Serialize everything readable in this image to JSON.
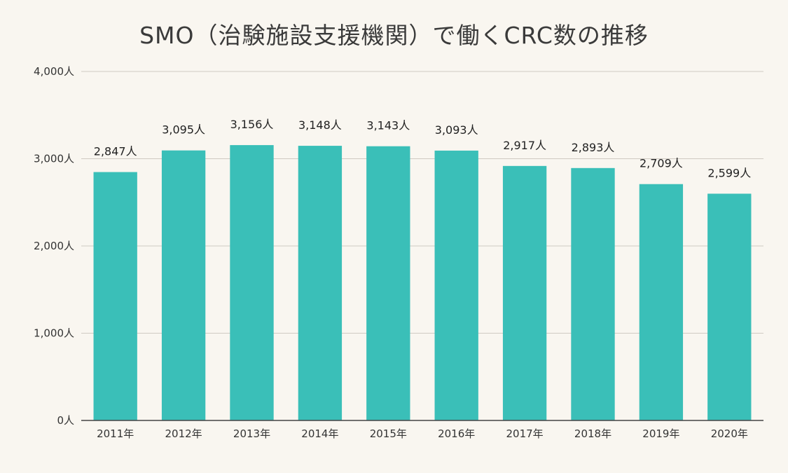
{
  "chart_data": {
    "type": "bar",
    "title": "SMO（治験施設支援機関）で働くCRC数の推移",
    "xlabel": "",
    "ylabel": "",
    "categories": [
      "2011年",
      "2012年",
      "2013年",
      "2014年",
      "2015年",
      "2016年",
      "2017年",
      "2018年",
      "2019年",
      "2020年"
    ],
    "values": [
      2847,
      3095,
      3156,
      3148,
      3143,
      3093,
      2917,
      2893,
      2709,
      2599
    ],
    "data_labels": [
      "2,847人",
      "3,095人",
      "3,156人",
      "3,148人",
      "3,143人",
      "3,093人",
      "2,917人",
      "2,893人",
      "2,709人",
      "2,599人"
    ],
    "ylim": [
      0,
      4000
    ],
    "y_ticks": [
      0,
      1000,
      2000,
      3000,
      4000
    ],
    "y_tick_labels": [
      "0人",
      "1,000人",
      "2,000人",
      "3,000人",
      "4,000人"
    ],
    "grid": true,
    "legend": "none",
    "colors": {
      "bar": "#3abfb8",
      "grid": "#cfcac2",
      "axis": "#444444",
      "background": "#f9f6f0"
    }
  }
}
